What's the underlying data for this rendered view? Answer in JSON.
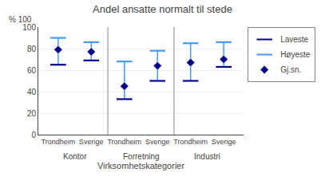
{
  "chart_data": {
    "type": "range",
    "title": "Andel ansatte normalt til stede",
    "x_label": "Virksomhetskategorier",
    "annotations": [
      "% 100"
    ],
    "categories": [
      "Trondheim",
      "Sverige",
      "Trondheim",
      "Sverige",
      "Trondheim",
      "Sverige"
    ],
    "groups": [
      "Kontor",
      "Forretning",
      "Industri"
    ],
    "series": [
      {
        "name": "Laveste",
        "color": "#00008B",
        "values": [
          65,
          69,
          33,
          50,
          50,
          63
        ]
      },
      {
        "name": "Høyeste",
        "color": "#4499ff",
        "values": [
          90,
          86,
          68,
          78,
          85,
          86
        ]
      },
      {
        "name": "Gj.sn.",
        "color": "#00008B",
        "marker": "diamond",
        "values": [
          79,
          77,
          45,
          64,
          67,
          70
        ]
      }
    ],
    "ylim": [
      0,
      100
    ],
    "yticks": [
      0,
      20,
      40,
      60,
      80,
      100
    ],
    "grid": true,
    "legend": "right"
  }
}
